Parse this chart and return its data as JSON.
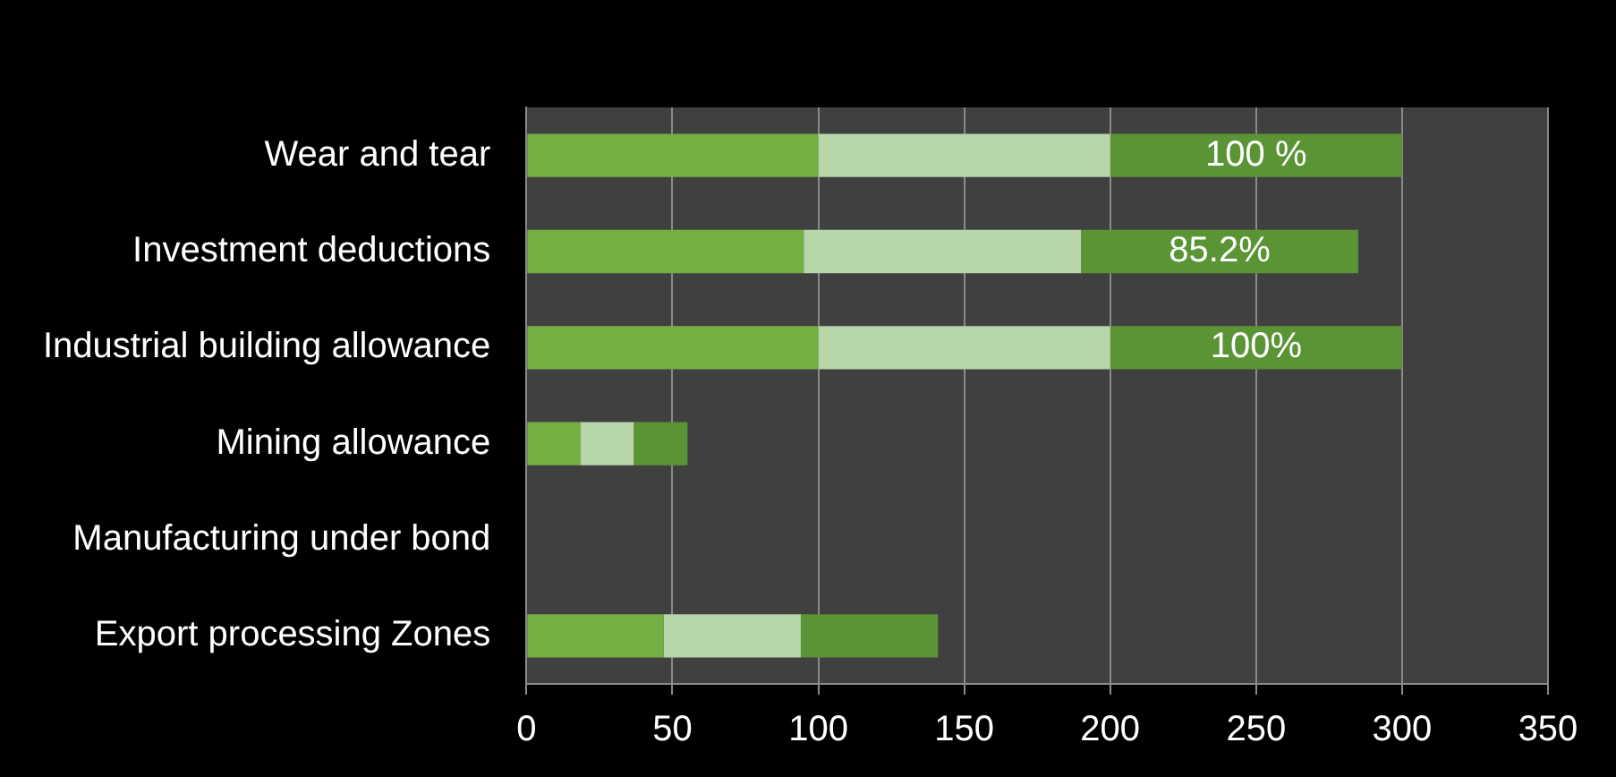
{
  "chart_data": {
    "type": "bar",
    "orientation": "horizontal",
    "stacked": true,
    "categories": [
      "Wear and tear",
      "Investment deductions",
      "Industrial building allowance",
      "Mining allowance",
      "Manufacturing under bond",
      "Export processing Zones"
    ],
    "series": [
      {
        "color": "#72b043",
        "values": [
          100,
          95,
          100,
          18.4,
          0,
          47
        ]
      },
      {
        "color": "#b7d6a8",
        "values": [
          100,
          95,
          100,
          18.4,
          0,
          47
        ]
      },
      {
        "color": "#5a9435",
        "values": [
          100,
          95,
          100,
          18.4,
          0,
          47
        ]
      }
    ],
    "annotations": [
      "100 %",
      "85.2%",
      "100%"
    ],
    "xlim": [
      0,
      350
    ],
    "xticks": [
      0,
      50,
      100,
      150,
      200,
      250,
      300,
      350
    ],
    "grid": "x",
    "legend": false
  }
}
